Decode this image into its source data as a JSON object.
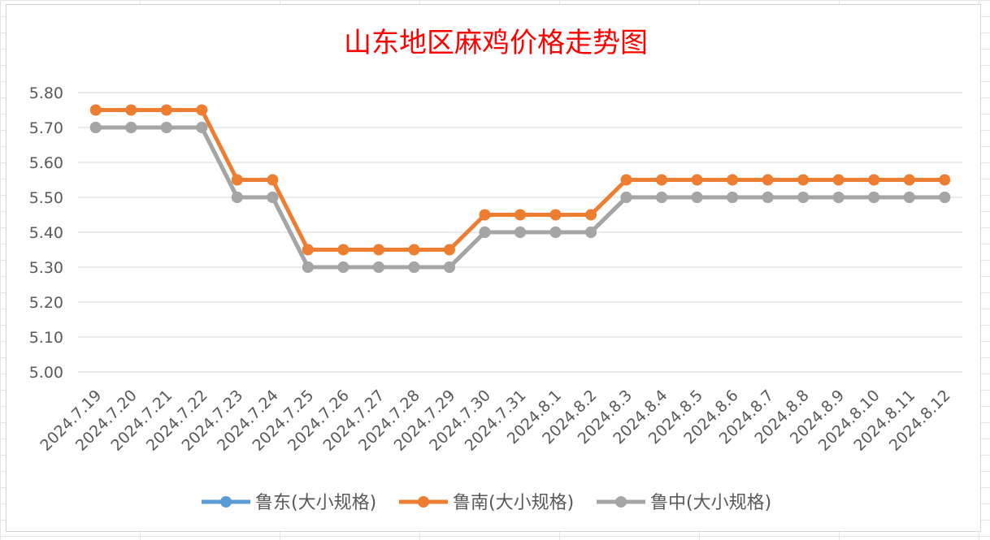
{
  "chart_data": {
    "type": "line",
    "title": "山东地区麻鸡价格走势图",
    "title_color": "#ff0000",
    "xlabel": "",
    "ylabel": "",
    "ylim": [
      5.0,
      5.8
    ],
    "y_ticks": [
      "5.80",
      "5.70",
      "5.60",
      "5.50",
      "5.40",
      "5.30",
      "5.20",
      "5.10",
      "5.00"
    ],
    "y_tick_values": [
      5.8,
      5.7,
      5.6,
      5.5,
      5.4,
      5.3,
      5.2,
      5.1,
      5.0
    ],
    "grid": true,
    "legend_position": "bottom",
    "categories": [
      "2024.7.19",
      "2024.7.20",
      "2024.7.21",
      "2024.7.22",
      "2024.7.23",
      "2024.7.24",
      "2024.7.25",
      "2024.7.26",
      "2024.7.27",
      "2024.7.28",
      "2024.7.29",
      "2024.7.30",
      "2024.7.31",
      "2024.8.1",
      "2024.8.2",
      "2024.8.3",
      "2024.8.4",
      "2024.8.5",
      "2024.8.6",
      "2024.8.7",
      "2024.8.8",
      "2024.8.9",
      "2024.8.10",
      "2024.8.11",
      "2024.8.12"
    ],
    "series": [
      {
        "name": "鲁东(大小规格)",
        "color": "#5b9bd5",
        "values": [
          5.7,
          5.7,
          5.7,
          5.7,
          5.5,
          5.5,
          5.3,
          5.3,
          5.3,
          5.3,
          5.3,
          5.4,
          5.4,
          5.4,
          5.4,
          5.5,
          5.5,
          5.5,
          5.5,
          5.5,
          5.5,
          5.5,
          5.5,
          5.5,
          5.5
        ]
      },
      {
        "name": "鲁南(大小规格)",
        "color": "#ed7d31",
        "values": [
          5.75,
          5.75,
          5.75,
          5.75,
          5.55,
          5.55,
          5.35,
          5.35,
          5.35,
          5.35,
          5.35,
          5.45,
          5.45,
          5.45,
          5.45,
          5.55,
          5.55,
          5.55,
          5.55,
          5.55,
          5.55,
          5.55,
          5.55,
          5.55,
          5.55
        ]
      },
      {
        "name": "鲁中(大小规格)",
        "color": "#a5a5a5",
        "values": [
          5.7,
          5.7,
          5.7,
          5.7,
          5.5,
          5.5,
          5.3,
          5.3,
          5.3,
          5.3,
          5.3,
          5.4,
          5.4,
          5.4,
          5.4,
          5.5,
          5.5,
          5.5,
          5.5,
          5.5,
          5.5,
          5.5,
          5.5,
          5.5,
          5.5
        ]
      }
    ]
  }
}
